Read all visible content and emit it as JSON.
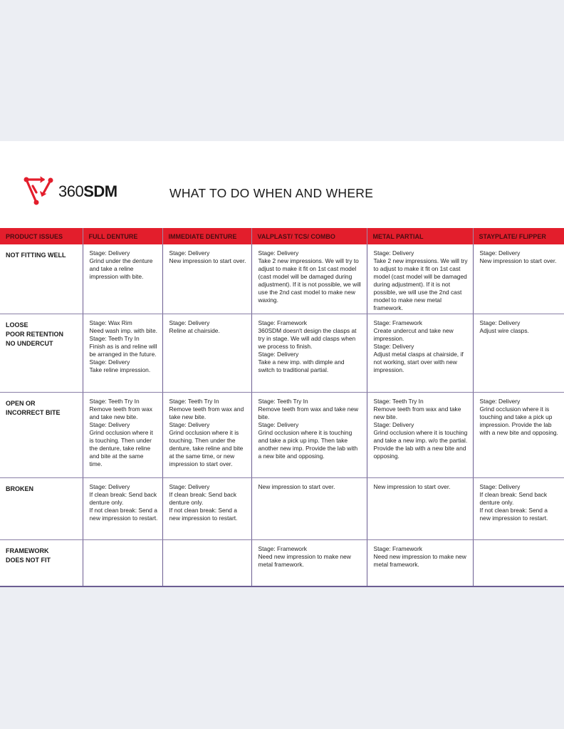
{
  "brand": {
    "light": "360",
    "bold": "SDM",
    "accent": "#e31e2c"
  },
  "title": "WHAT TO DO WHEN AND WHERE",
  "columns": [
    "PRODUCT ISSUES",
    "FULL DENTURE",
    "IMMEDIATE DENTURE",
    "VALPLAST/ TCS/ COMBO",
    "METAL PARTIAL",
    "STAYPLATE/ FLIPPER"
  ],
  "rows": [
    {
      "issue": [
        "NOT FITTING WELL"
      ],
      "cells": [
        [
          "Stage: Delivery",
          "Grind under the denture and take a reline impression with bite."
        ],
        [
          "Stage: Delivery",
          "New impression to start over."
        ],
        [
          "Stage: Delivery",
          "Take 2 new impressions. We will try to adjust to make it fit on 1st cast model (cast model will be damaged during adjustment). If it is not possible, we will use the 2nd cast model to make new waxing."
        ],
        [
          "Stage: Delivery",
          "Take 2 new impressions. We will try to adjust to make it fit on 1st cast model (cast model will be damaged during adjustment). If it is not possible, we will use the 2nd cast model to make new metal framework."
        ],
        [
          "Stage: Delivery",
          "New impression to start over."
        ]
      ]
    },
    {
      "issue": [
        "LOOSE",
        "POOR RETENTION",
        "NO UNDERCUT"
      ],
      "cells": [
        [
          "Stage: Wax Rim",
          "Need wash imp. with bite.",
          "Stage: Teeth Try In",
          "Finish as is and reline will be arranged in the future.",
          "Stage: Delivery",
          "Take reline impression."
        ],
        [
          "Stage: Delivery",
          "Reline at chairside."
        ],
        [
          "Stage: Framework",
          "360SDM doesn't design the clasps at try in stage. We will add clasps when we process to finish.",
          "Stage: Delivery",
          "Take a new imp. with dimple and switch to traditional partial."
        ],
        [
          "Stage: Framework",
          "Create undercut and take new impression.",
          "Stage: Delivery",
          "Adjust metal clasps at chairside, if not working, start over with new impression."
        ],
        [
          "Stage: Delivery",
          "Adjust wire clasps."
        ]
      ]
    },
    {
      "issue": [
        "OPEN OR",
        "INCORRECT BITE"
      ],
      "cells": [
        [
          "Stage: Teeth Try In",
          "Remove teeth from wax and take new bite.",
          "Stage: Delivery",
          "Grind occlusion where it is touching. Then under the denture, take reline and bite at the same time."
        ],
        [
          "Stage: Teeth Try In",
          "Remove teeth from wax and take new bite.",
          "Stage: Delivery",
          "Grind occlusion where it is touching. Then under the denture, take reline and bite at the same time, or new impression to start over."
        ],
        [
          "Stage: Teeth Try In",
          "Remove teeth from wax and take new bite.",
          "Stage: Delivery",
          "Grind occlusion where it is touching and take a pick up imp. Then take another new imp. Provide the lab with a new bite and opposing."
        ],
        [
          "Stage: Teeth Try In",
          "Remove teeth from wax and take new bite.",
          "Stage: Delivery",
          "Grind occlusion where it is touching and take a new imp. w/o the partial. Provide the lab with a new bite and opposing."
        ],
        [
          "Stage: Delivery",
          "Grind occlusion where it is touching and take a pick up impression. Provide the lab with a new bite and opposing."
        ]
      ]
    },
    {
      "issue": [
        "BROKEN"
      ],
      "cells": [
        [
          "Stage: Delivery",
          "If clean break: Send back denture only.",
          "If not clean break: Send a new impression to restart."
        ],
        [
          "Stage: Delivery",
          "If clean break: Send back denture only.",
          "If not clean break: Send a new impression to restart."
        ],
        [
          "New impression to start over."
        ],
        [
          "New impression to start over."
        ],
        [
          "Stage: Delivery",
          "If clean break: Send back denture only.",
          "If not clean break: Send a new impression to restart."
        ]
      ]
    },
    {
      "issue": [
        "FRAMEWORK",
        "DOES NOT FIT"
      ],
      "cells": [
        [],
        [],
        [
          "Stage: Framework",
          "Need new impression to make new metal framework."
        ],
        [
          "Stage: Framework",
          "Need new impression to make new metal framework."
        ],
        []
      ]
    }
  ]
}
